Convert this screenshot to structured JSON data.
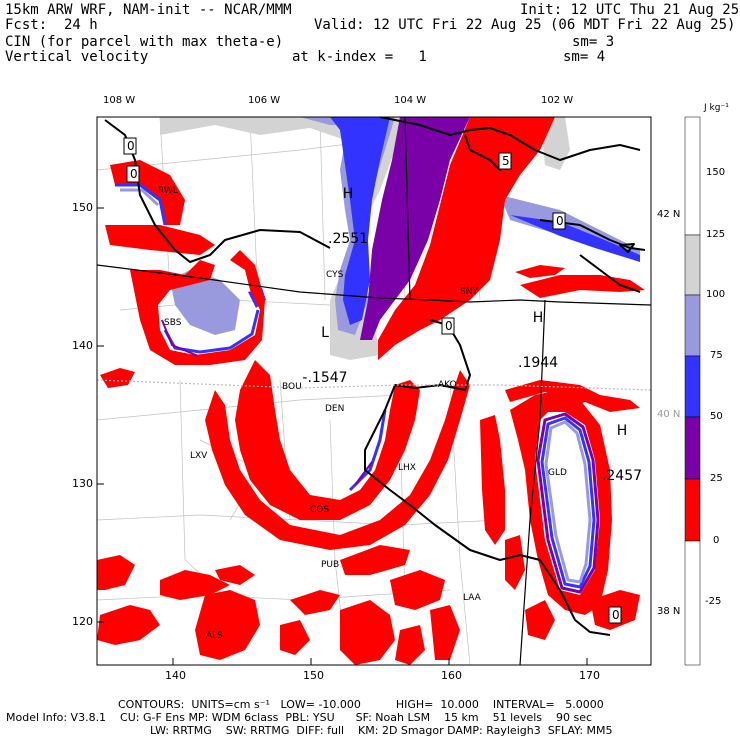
{
  "header": {
    "model": "15km ARW WRF, NAM-init -- NCAR/MMM",
    "init": "Init: 12 UTC Thu 21 Aug 25",
    "fcst_label": "Fcst:",
    "fcst_value": "24 h",
    "valid": "Valid: 12 UTC Fri 22 Aug 25 (06 MDT Fri 22 Aug 25)",
    "field1": "CIN (for parcel with max theta-e)",
    "sm1": "sm= 3",
    "field2": "Vertical velocity",
    "k_index": "at k-index =   1",
    "sm2": "sm= 4"
  },
  "colorbar": {
    "units": "J kg⁻¹",
    "ticks": [
      "150",
      "125",
      "100",
      "75",
      "50",
      "25",
      "0",
      "-25"
    ],
    "colors": [
      "#ffffff",
      "#d3d3d3",
      "#9999dd",
      "#3333ff",
      "#7a00a8",
      "#ff0000",
      "#ffffff"
    ]
  },
  "axes": {
    "lon_top": [
      "108 W",
      "106 W",
      "104 W",
      "102 W"
    ],
    "lat_right": [
      "42 N",
      "40 N",
      "38 N"
    ],
    "x_ticks": [
      "140",
      "150",
      "160",
      "170"
    ],
    "y_ticks": [
      "150",
      "140",
      "130",
      "120"
    ]
  },
  "stations": [
    "RWL",
    "CYS",
    "SNY",
    "SBS",
    "BOU",
    "DEN",
    "AKO",
    "LXV",
    "GLD",
    "COS",
    "PUB",
    "LHX",
    "LAA",
    "ALS"
  ],
  "extrema": [
    {
      "letter": "H",
      "value": ".2551"
    },
    {
      "letter": "L",
      "value": "-.1547"
    },
    {
      "letter": "H",
      "value": ".1944"
    },
    {
      "letter": "H",
      "value": ".2457"
    }
  ],
  "contour_labels": [
    "0",
    "0",
    "0",
    "0",
    "5",
    "0"
  ],
  "footer": {
    "contours": "CONTOURS:  UNITS=cm s⁻¹   LOW= -10.000          HIGH=  10.000    INTERVAL=   5.0000",
    "model_info": "Model Info: V3.8.1    CU: G-F Ens MP: WDM 6class  PBL: YSU      SF: Noah LSM    15 km    51 levels    90 sec",
    "model_info2": "LW: RRTMG    SW: RRTMG  DIFF: full    KM: 2D Smagor DAMP: Rayleigh3  SFLAY: MM5"
  }
}
